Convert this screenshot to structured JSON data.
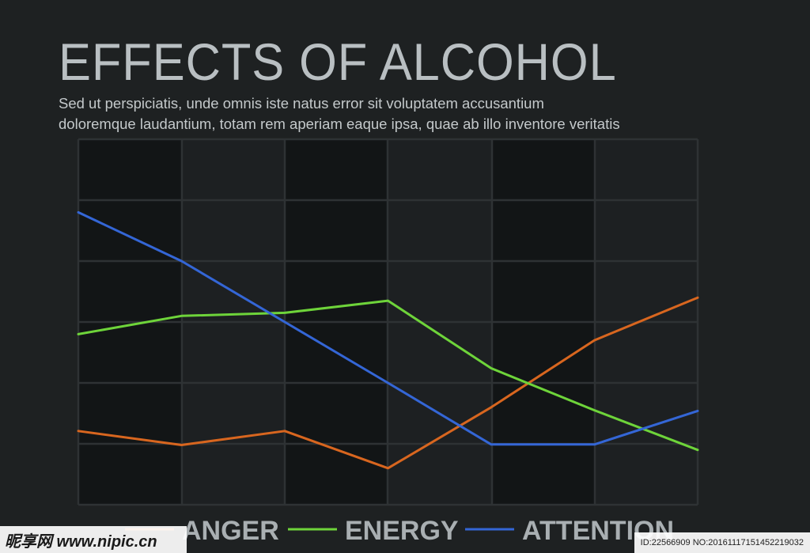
{
  "chart_data": {
    "type": "line",
    "title": "EFFECTS OF ALCOHOL",
    "subtitle_lines": [
      "Sed ut perspiciatis, unde omnis iste natus error sit voluptatem accusantium",
      "doloremque laudantium, totam rem aperiam eaque ipsa, quae ab illo inventore veritatis"
    ],
    "x": [
      0,
      1,
      2,
      3,
      4,
      5,
      6
    ],
    "ylim": [
      0,
      6
    ],
    "grid": true,
    "legend_position": "bottom",
    "series": [
      {
        "name": "ANGER",
        "color": "#d8661f",
        "values": [
          1.21,
          0.98,
          1.21,
          0.6,
          1.6,
          2.7,
          3.4
        ]
      },
      {
        "name": "ENERGY",
        "color": "#6ed43a",
        "values": [
          2.8,
          3.1,
          3.15,
          3.35,
          2.24,
          1.55,
          0.9
        ]
      },
      {
        "name": "ATTENTION",
        "color": "#3466d6",
        "values": [
          4.8,
          4.0,
          3.0,
          2.0,
          0.99,
          0.99,
          1.54
        ]
      }
    ]
  },
  "watermark": {
    "left": "昵享网 www.nipic.cn",
    "right": "ID:22566909 NO:20161117151452219032"
  }
}
